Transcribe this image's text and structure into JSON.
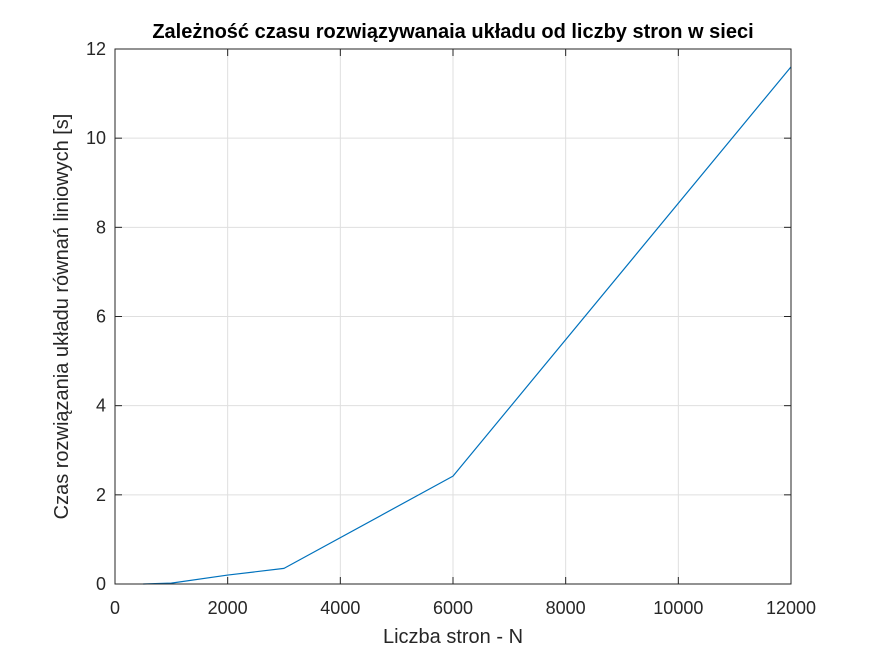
{
  "chart_data": {
    "type": "line",
    "title": "Zależność czasu rozwiązywanaia układu od liczby stron w sieci",
    "xlabel": "Liczba stron - N",
    "ylabel": "Czas rozwiązania układu równań liniowych [s]",
    "xlim": [
      0,
      12000
    ],
    "ylim": [
      0,
      12
    ],
    "xticks": [
      0,
      2000,
      4000,
      6000,
      8000,
      10000,
      12000
    ],
    "yticks": [
      0,
      2,
      4,
      6,
      8,
      10,
      12
    ],
    "xtick_labels": [
      "0",
      "2000",
      "4000",
      "6000",
      "8000",
      "10000",
      "12000"
    ],
    "ytick_labels": [
      "0",
      "2",
      "4",
      "6",
      "8",
      "10",
      "12"
    ],
    "grid": true,
    "series": [
      {
        "x": [
          500,
          1000,
          2000,
          3000,
          6000,
          12000
        ],
        "y": [
          0.0,
          0.02,
          0.2,
          0.35,
          2.42,
          11.6
        ],
        "color": "#0072BD"
      }
    ]
  }
}
